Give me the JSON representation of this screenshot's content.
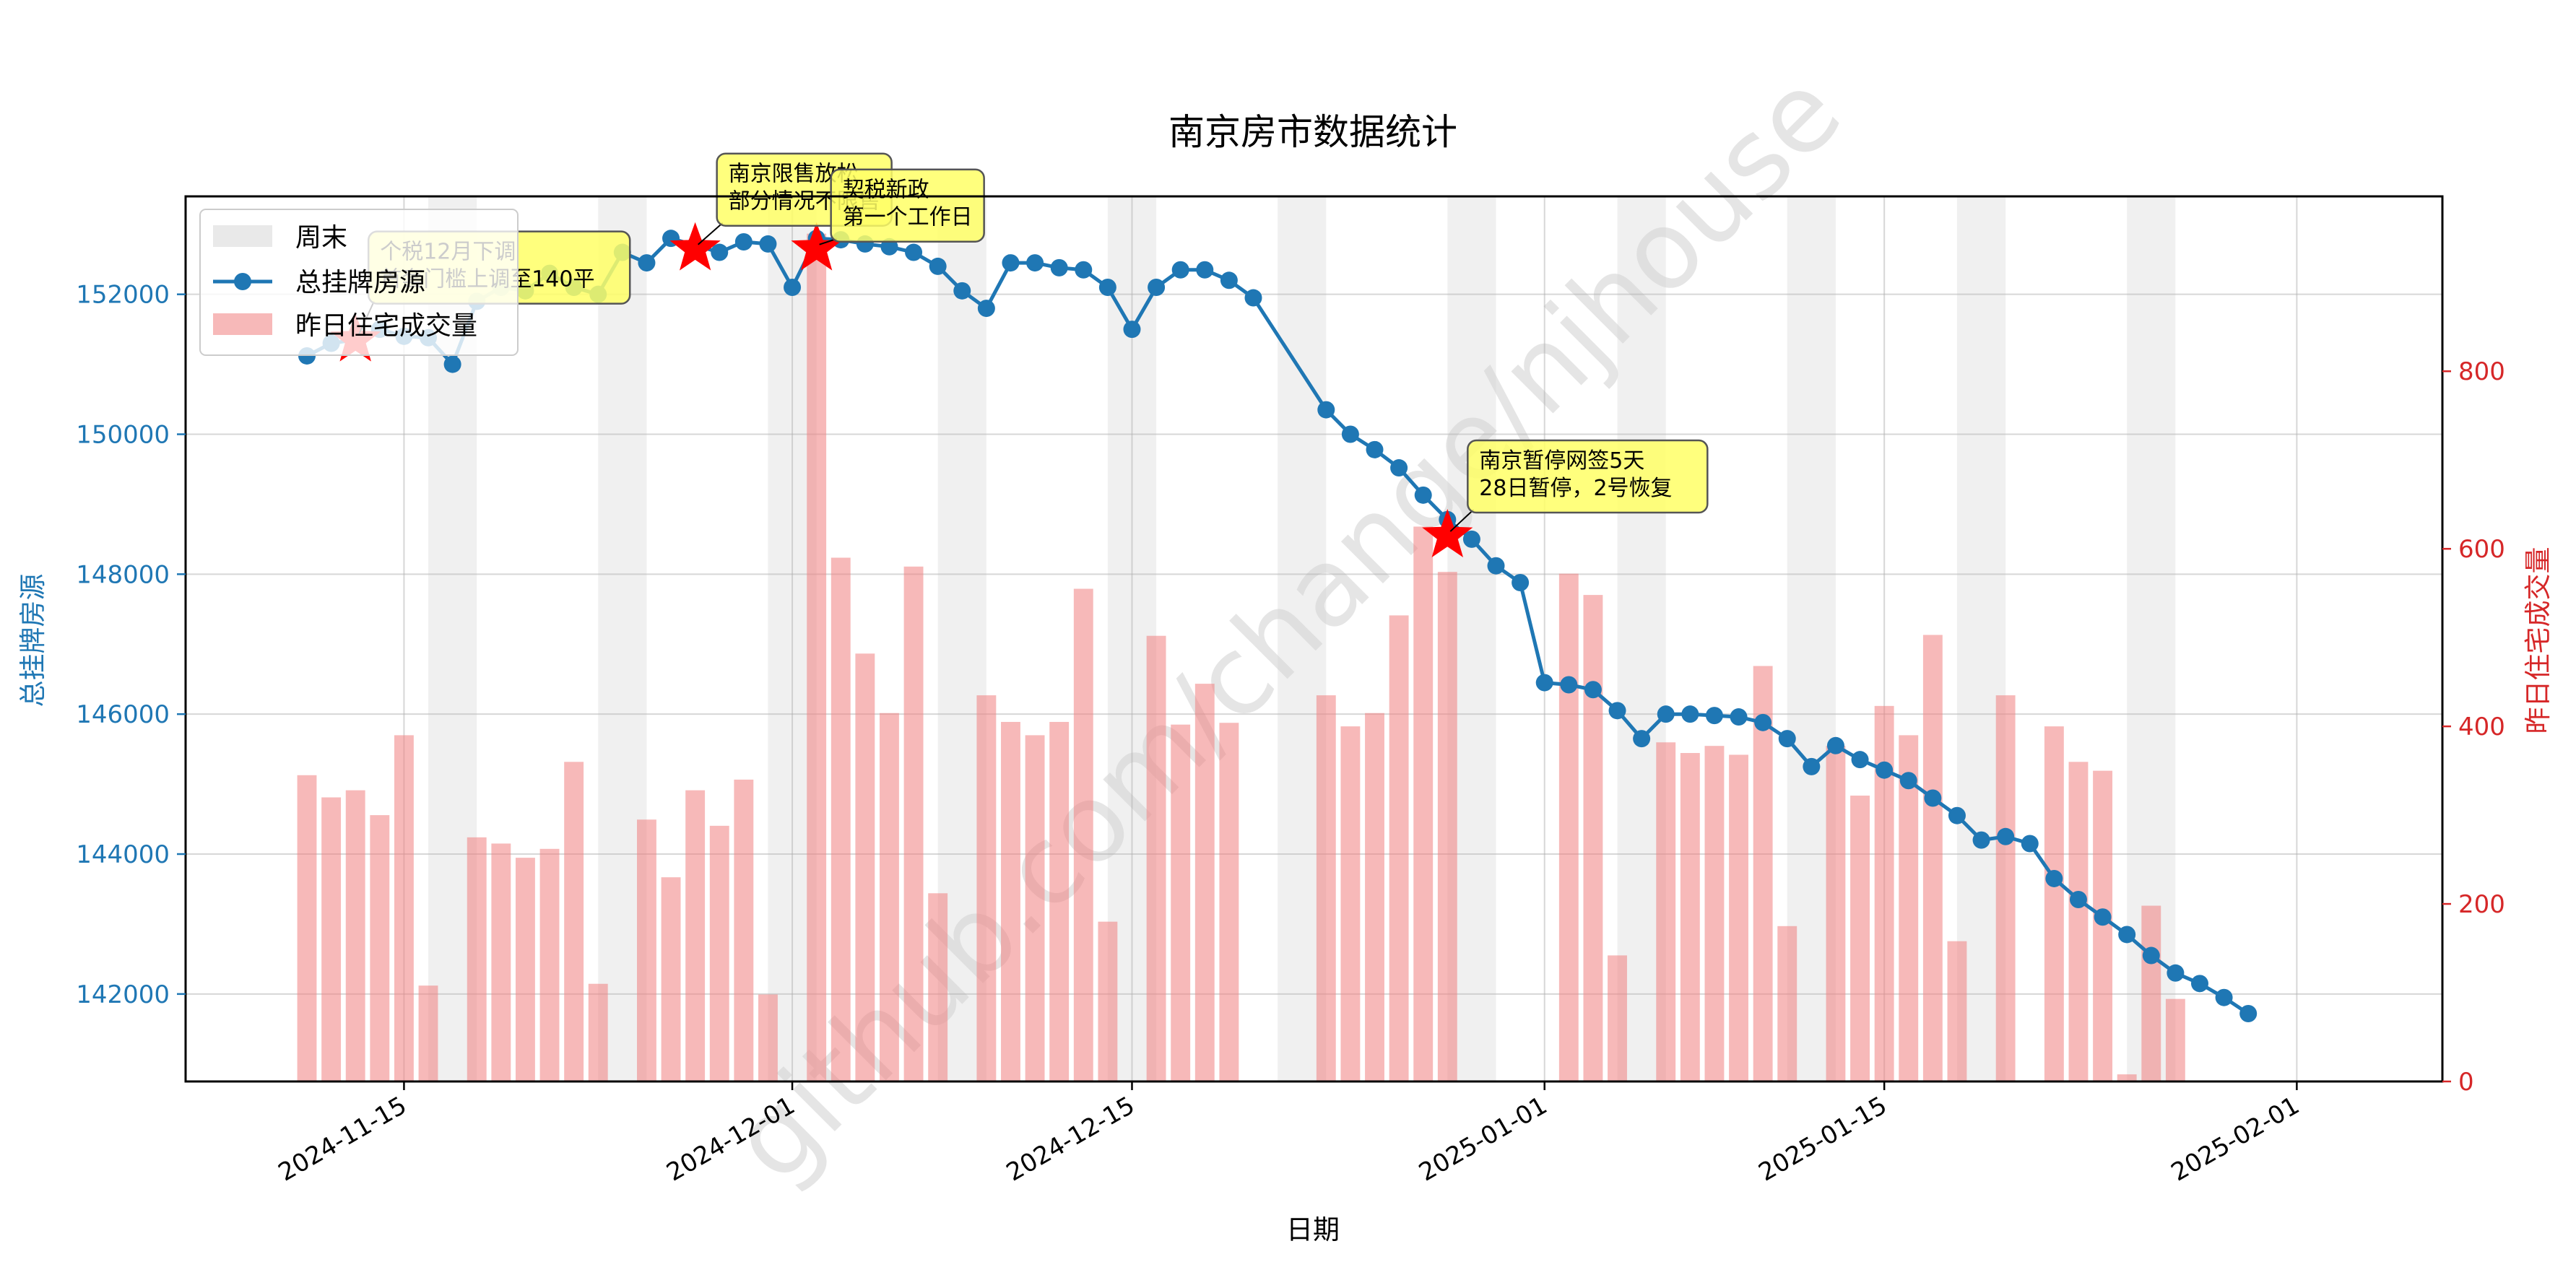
{
  "chart_data": {
    "type": "line",
    "title": "南京房市数据统计",
    "xlabel": "日期",
    "ylabel": "总挂牌房源",
    "y2label": "昨日住宅成交量",
    "ylim": [
      140750,
      153400
    ],
    "y2lim": [
      0,
      997
    ],
    "xlim": [
      "2024-11-06",
      "2025-02-07"
    ],
    "x_ticks": [
      "2024-11-15",
      "2024-12-01",
      "2024-12-15",
      "2025-01-01",
      "2025-01-15",
      "2025-02-01"
    ],
    "y_ticks": [
      142000,
      144000,
      146000,
      148000,
      150000,
      152000
    ],
    "y2_ticks": [
      0,
      200,
      400,
      600,
      800
    ],
    "grid": true,
    "legend_position": "upper-left",
    "legend": [
      "周末",
      "总挂牌房源",
      "昨日住宅成交量"
    ],
    "watermark": "github.com/change/njhouse",
    "colors": {
      "line": "#1f77b4",
      "bars": "#f08080",
      "weekend": "#d3d3d3",
      "star": "#ff0000",
      "annotation_bg": "#ffff66",
      "y2_axis": "#d62728",
      "y_axis": "#1f77b4"
    },
    "weekends": [
      [
        "2024-11-16",
        "2024-11-17"
      ],
      [
        "2024-11-23",
        "2024-11-24"
      ],
      [
        "2024-11-30",
        "2024-12-01"
      ],
      [
        "2024-12-07",
        "2024-12-08"
      ],
      [
        "2024-12-14",
        "2024-12-15"
      ],
      [
        "2024-12-21",
        "2024-12-22"
      ],
      [
        "2024-12-28",
        "2024-12-29"
      ],
      [
        "2025-01-04",
        "2025-01-05"
      ],
      [
        "2025-01-11",
        "2025-01-12"
      ],
      [
        "2025-01-18",
        "2025-01-19"
      ],
      [
        "2025-01-25",
        "2025-01-26"
      ]
    ],
    "series": [
      {
        "name": "总挂牌房源",
        "type": "line",
        "axis": "left",
        "x": [
          "2024-11-11",
          "2024-11-12",
          "2024-11-13",
          "2024-11-14",
          "2024-11-15",
          "2024-11-16",
          "2024-11-17",
          "2024-11-18",
          "2024-11-19",
          "2024-11-20",
          "2024-11-21",
          "2024-11-22",
          "2024-11-23",
          "2024-11-24",
          "2024-11-25",
          "2024-11-26",
          "2024-11-27",
          "2024-11-28",
          "2024-11-29",
          "2024-11-30",
          "2024-12-01",
          "2024-12-02",
          "2024-12-03",
          "2024-12-04",
          "2024-12-05",
          "2024-12-06",
          "2024-12-07",
          "2024-12-08",
          "2024-12-09",
          "2024-12-10",
          "2024-12-11",
          "2024-12-12",
          "2024-12-13",
          "2024-12-14",
          "2024-12-15",
          "2024-12-16",
          "2024-12-17",
          "2024-12-18",
          "2024-12-19",
          "2024-12-20",
          "2024-12-23",
          "2024-12-24",
          "2024-12-25",
          "2024-12-26",
          "2024-12-27",
          "2024-12-28",
          "2024-12-29",
          "2024-12-30",
          "2024-12-31",
          "2025-01-01",
          "2025-01-02",
          "2025-01-03",
          "2025-01-04",
          "2025-01-05",
          "2025-01-06",
          "2025-01-07",
          "2025-01-08",
          "2025-01-09",
          "2025-01-10",
          "2025-01-11",
          "2025-01-12",
          "2025-01-13",
          "2025-01-14",
          "2025-01-15",
          "2025-01-16",
          "2025-01-17",
          "2025-01-18",
          "2025-01-19",
          "2025-01-20",
          "2025-01-21",
          "2025-01-22",
          "2025-01-23",
          "2025-01-24",
          "2025-01-25",
          "2025-01-26",
          "2025-01-27",
          "2025-01-28",
          "2025-01-29",
          "2025-01-30"
        ],
        "values": [
          151120,
          151300,
          151350,
          151500,
          151400,
          151380,
          151000,
          151900,
          152100,
          152050,
          152300,
          152100,
          152000,
          152600,
          152450,
          152800,
          152700,
          152600,
          152750,
          152720,
          152100,
          152800,
          152780,
          152720,
          152680,
          152600,
          152400,
          152050,
          151800,
          152450,
          152450,
          152380,
          152350,
          152100,
          151500,
          152100,
          152350,
          152350,
          152200,
          151950,
          150350,
          150000,
          149780,
          149520,
          149130,
          148780,
          148500,
          148120,
          147880,
          146450,
          146420,
          146350,
          146050,
          145650,
          146000,
          146000,
          145980,
          145960,
          145880,
          145650,
          145250,
          145550,
          145350,
          145200,
          145050,
          144800,
          144550,
          144200,
          144250,
          144150,
          143650,
          143350,
          143100,
          142850,
          142550,
          142300,
          142150,
          141950,
          141720
        ]
      },
      {
        "name": "昨日住宅成交量",
        "type": "bar",
        "axis": "right",
        "x": [
          "2024-11-11",
          "2024-11-12",
          "2024-11-13",
          "2024-11-14",
          "2024-11-15",
          "2024-11-16",
          "2024-11-18",
          "2024-11-19",
          "2024-11-20",
          "2024-11-21",
          "2024-11-22",
          "2024-11-23",
          "2024-11-25",
          "2024-11-26",
          "2024-11-27",
          "2024-11-28",
          "2024-11-29",
          "2024-11-30",
          "2024-12-02",
          "2024-12-03",
          "2024-12-04",
          "2024-12-05",
          "2024-12-06",
          "2024-12-07",
          "2024-12-09",
          "2024-12-10",
          "2024-12-11",
          "2024-12-12",
          "2024-12-13",
          "2024-12-14",
          "2024-12-16",
          "2024-12-17",
          "2024-12-18",
          "2024-12-19",
          "2024-12-23",
          "2024-12-24",
          "2024-12-25",
          "2024-12-26",
          "2024-12-27",
          "2024-12-28",
          "2025-01-02",
          "2025-01-03",
          "2025-01-04",
          "2025-01-06",
          "2025-01-07",
          "2025-01-08",
          "2025-01-09",
          "2025-01-10",
          "2025-01-11",
          "2025-01-13",
          "2025-01-14",
          "2025-01-15",
          "2025-01-16",
          "2025-01-17",
          "2025-01-18",
          "2025-01-20",
          "2025-01-22",
          "2025-01-23",
          "2025-01-24",
          "2025-01-25",
          "2025-01-26",
          "2025-01-27"
        ],
        "values": [
          345,
          320,
          328,
          300,
          390,
          108,
          275,
          268,
          252,
          262,
          360,
          110,
          295,
          230,
          328,
          288,
          340,
          98,
          955,
          590,
          482,
          415,
          580,
          212,
          435,
          405,
          390,
          405,
          555,
          180,
          502,
          402,
          448,
          404,
          435,
          400,
          415,
          525,
          625,
          574,
          572,
          548,
          142,
          382,
          370,
          378,
          368,
          468,
          175,
          378,
          322,
          423,
          390,
          503,
          158,
          435,
          400,
          360,
          350,
          8,
          198,
          93
        ]
      }
    ],
    "annotations": [
      {
        "date": "2024-11-13",
        "value": 151350,
        "text": [
          "个税12月下调",
          "首套门槛上调至140平"
        ]
      },
      {
        "date": "2024-11-27",
        "value": 152650,
        "text": [
          "南京限售放松",
          "部分情况不限售"
        ]
      },
      {
        "date": "2024-12-02",
        "value": 152650,
        "text": [
          "契税新政",
          "第一个工作日"
        ]
      },
      {
        "date": "2024-12-28",
        "value": 148550,
        "text": [
          "南京暂停网签5天",
          "28日暂停，2号恢复"
        ]
      }
    ]
  }
}
